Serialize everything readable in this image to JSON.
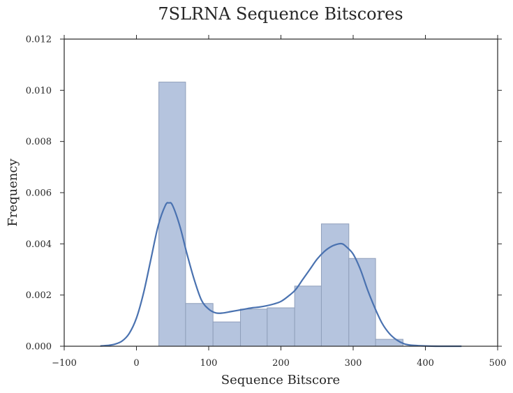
{
  "chart_data": {
    "type": "bar",
    "title": "7SLRNA Sequence Bitscores",
    "xlabel": "Sequence Bitscore",
    "ylabel": "Frequency",
    "xlim": [
      -100,
      500
    ],
    "ylim": [
      0,
      0.012
    ],
    "x_ticks": [
      "−100",
      "0",
      "100",
      "200",
      "300",
      "400",
      "500"
    ],
    "x_tick_values": [
      -100,
      0,
      100,
      200,
      300,
      400,
      500
    ],
    "y_ticks": [
      "0.000",
      "0.002",
      "0.004",
      "0.006",
      "0.008",
      "0.010",
      "0.012"
    ],
    "y_tick_values": [
      0,
      0.002,
      0.004,
      0.006,
      0.008,
      0.01,
      0.012
    ],
    "grid": false,
    "histogram": {
      "bins": [
        {
          "x0": 31,
          "x1": 68,
          "value": 0.01032
        },
        {
          "x0": 68,
          "x1": 106,
          "value": 0.00167
        },
        {
          "x0": 106,
          "x1": 144,
          "value": 0.00095
        },
        {
          "x0": 144,
          "x1": 181,
          "value": 0.00145
        },
        {
          "x0": 181,
          "x1": 219,
          "value": 0.0015
        },
        {
          "x0": 219,
          "x1": 256,
          "value": 0.00235
        },
        {
          "x0": 256,
          "x1": 294,
          "value": 0.00478
        },
        {
          "x0": 294,
          "x1": 331,
          "value": 0.00343
        },
        {
          "x0": 331,
          "x1": 369,
          "value": 0.00027
        }
      ],
      "color": "#b5c4de",
      "edge_color": "#8f9fba"
    },
    "kde": {
      "color": "#4a72b0",
      "x": [
        -50,
        -40,
        -30,
        -20,
        -10,
        0,
        10,
        20,
        30,
        40,
        45,
        50,
        60,
        70,
        80,
        90,
        100,
        110,
        120,
        130,
        140,
        150,
        160,
        170,
        180,
        190,
        200,
        210,
        220,
        230,
        240,
        250,
        260,
        270,
        280,
        285,
        290,
        300,
        310,
        320,
        330,
        340,
        350,
        360,
        370,
        380,
        400,
        420,
        450
      ],
      "y": [
        1e-05,
        3e-05,
        8e-05,
        0.0002,
        0.0005,
        0.0011,
        0.0021,
        0.0034,
        0.0047,
        0.0055,
        0.0056,
        0.0055,
        0.0047,
        0.0036,
        0.0026,
        0.0018,
        0.00145,
        0.0013,
        0.0013,
        0.00135,
        0.0014,
        0.00145,
        0.0015,
        0.00153,
        0.00158,
        0.00165,
        0.00175,
        0.00195,
        0.0022,
        0.0026,
        0.003,
        0.0034,
        0.0037,
        0.0039,
        0.004,
        0.004,
        0.0039,
        0.0036,
        0.003,
        0.0022,
        0.0015,
        0.0009,
        0.0005,
        0.00025,
        0.0001,
        4e-05,
        1e-05,
        0.0,
        0.0
      ]
    }
  }
}
